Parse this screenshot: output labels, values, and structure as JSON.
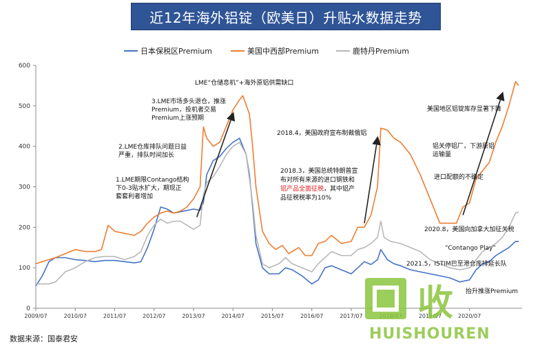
{
  "header": {
    "title": "近12年海外铝锭（欧美日）升贴水数据走势"
  },
  "source": "数据来源：国泰君安",
  "watermark": {
    "line1": "回收",
    "line2": "HUISHOUREN"
  },
  "colors": {
    "japan": "#4472c4",
    "us": "#ed7d31",
    "rotterdam": "#b7b7b7",
    "arrow": "#222222"
  },
  "chart_data": {
    "type": "line",
    "title": "",
    "xlabel": "",
    "ylabel": "",
    "ylim": [
      0,
      600
    ],
    "yticks": [
      0,
      100,
      200,
      300,
      400,
      500,
      600
    ],
    "xlim": [
      "2009-07",
      "2021-11"
    ],
    "xticks": [
      "2009/07",
      "2010/07",
      "2011/07",
      "2012/07",
      "2013/07",
      "2014/07",
      "2015/07",
      "2016/07",
      "2017/07",
      "2018/07",
      "2019/07",
      "2020/07"
    ],
    "legend_position": "top",
    "series": [
      {
        "name": "日本保税区Premium",
        "color_key": "japan",
        "points": [
          [
            "2009-07",
            55
          ],
          [
            "2009-09",
            80
          ],
          [
            "2009-11",
            115
          ],
          [
            "2010-01",
            125
          ],
          [
            "2010-04",
            125
          ],
          [
            "2010-07",
            120
          ],
          [
            "2010-10",
            118
          ],
          [
            "2011-01",
            115
          ],
          [
            "2011-04",
            118
          ],
          [
            "2011-07",
            118
          ],
          [
            "2011-10",
            115
          ],
          [
            "2012-01",
            112
          ],
          [
            "2012-03",
            115
          ],
          [
            "2012-05",
            150
          ],
          [
            "2012-07",
            195
          ],
          [
            "2012-09",
            250
          ],
          [
            "2012-11",
            245
          ],
          [
            "2013-01",
            235
          ],
          [
            "2013-04",
            240
          ],
          [
            "2013-07",
            245
          ],
          [
            "2013-09",
            242
          ],
          [
            "2013-10",
            260
          ],
          [
            "2013-11",
            330
          ],
          [
            "2014-01",
            365
          ],
          [
            "2014-03",
            375
          ],
          [
            "2014-05",
            395
          ],
          [
            "2014-07",
            410
          ],
          [
            "2014-09",
            420
          ],
          [
            "2014-11",
            380
          ],
          [
            "2014-12",
            330
          ],
          [
            "2015-01",
            250
          ],
          [
            "2015-02",
            160
          ],
          [
            "2015-04",
            100
          ],
          [
            "2015-06",
            85
          ],
          [
            "2015-09",
            85
          ],
          [
            "2015-11",
            100
          ],
          [
            "2016-01",
            95
          ],
          [
            "2016-04",
            80
          ],
          [
            "2016-07",
            60
          ],
          [
            "2016-09",
            70
          ],
          [
            "2016-11",
            100
          ],
          [
            "2017-01",
            105
          ],
          [
            "2017-04",
            95
          ],
          [
            "2017-07",
            85
          ],
          [
            "2017-09",
            100
          ],
          [
            "2017-11",
            115
          ],
          [
            "2018-01",
            108
          ],
          [
            "2018-03",
            120
          ],
          [
            "2018-04",
            145
          ],
          [
            "2018-06",
            120
          ],
          [
            "2018-08",
            110
          ],
          [
            "2018-10",
            105
          ],
          [
            "2019-01",
            95
          ],
          [
            "2019-04",
            90
          ],
          [
            "2019-07",
            85
          ],
          [
            "2019-10",
            80
          ],
          [
            "2020-01",
            75
          ],
          [
            "2020-04",
            65
          ],
          [
            "2020-07",
            70
          ],
          [
            "2020-09",
            95
          ],
          [
            "2020-11",
            110
          ],
          [
            "2021-01",
            115
          ],
          [
            "2021-03",
            130
          ],
          [
            "2021-05",
            140
          ],
          [
            "2021-07",
            150
          ],
          [
            "2021-09",
            165
          ],
          [
            "2021-10",
            165
          ]
        ]
      },
      {
        "name": "美国中西部Premium",
        "color_key": "us",
        "points": [
          [
            "2009-07",
            110
          ],
          [
            "2009-09",
            115
          ],
          [
            "2009-11",
            120
          ],
          [
            "2010-01",
            125
          ],
          [
            "2010-04",
            135
          ],
          [
            "2010-07",
            145
          ],
          [
            "2010-10",
            140
          ],
          [
            "2011-01",
            140
          ],
          [
            "2011-03",
            145
          ],
          [
            "2011-05",
            205
          ],
          [
            "2011-07",
            190
          ],
          [
            "2011-10",
            185
          ],
          [
            "2012-01",
            180
          ],
          [
            "2012-03",
            190
          ],
          [
            "2012-05",
            210
          ],
          [
            "2012-07",
            225
          ],
          [
            "2012-09",
            235
          ],
          [
            "2012-11",
            240
          ],
          [
            "2013-01",
            235
          ],
          [
            "2013-03",
            240
          ],
          [
            "2013-05",
            250
          ],
          [
            "2013-07",
            270
          ],
          [
            "2013-09",
            300
          ],
          [
            "2013-10",
            448
          ],
          [
            "2013-11",
            420
          ],
          [
            "2014-01",
            400
          ],
          [
            "2014-03",
            410
          ],
          [
            "2014-05",
            450
          ],
          [
            "2014-07",
            490
          ],
          [
            "2014-09",
            515
          ],
          [
            "2014-10",
            525
          ],
          [
            "2014-12",
            480
          ],
          [
            "2015-01",
            400
          ],
          [
            "2015-02",
            300
          ],
          [
            "2015-04",
            190
          ],
          [
            "2015-06",
            160
          ],
          [
            "2015-08",
            145
          ],
          [
            "2015-10",
            155
          ],
          [
            "2015-12",
            135
          ],
          [
            "2016-03",
            150
          ],
          [
            "2016-05",
            130
          ],
          [
            "2016-07",
            130
          ],
          [
            "2016-09",
            160
          ],
          [
            "2016-11",
            165
          ],
          [
            "2017-01",
            180
          ],
          [
            "2017-04",
            160
          ],
          [
            "2017-07",
            165
          ],
          [
            "2017-09",
            200
          ],
          [
            "2017-11",
            200
          ],
          [
            "2018-01",
            230
          ],
          [
            "2018-03",
            300
          ],
          [
            "2018-04",
            445
          ],
          [
            "2018-06",
            440
          ],
          [
            "2018-08",
            420
          ],
          [
            "2018-10",
            410
          ],
          [
            "2019-01",
            380
          ],
          [
            "2019-04",
            330
          ],
          [
            "2019-07",
            270
          ],
          [
            "2019-10",
            210
          ],
          [
            "2020-01",
            210
          ],
          [
            "2020-03",
            210
          ],
          [
            "2020-05",
            250
          ],
          [
            "2020-07",
            260
          ],
          [
            "2020-09",
            320
          ],
          [
            "2020-11",
            340
          ],
          [
            "2021-01",
            360
          ],
          [
            "2021-03",
            410
          ],
          [
            "2021-05",
            450
          ],
          [
            "2021-07",
            500
          ],
          [
            "2021-09",
            560
          ],
          [
            "2021-10",
            550
          ]
        ]
      },
      {
        "name": "鹿特丹Premium",
        "color_key": "rotterdam",
        "points": [
          [
            "2009-07",
            60
          ],
          [
            "2009-09",
            60
          ],
          [
            "2009-11",
            60
          ],
          [
            "2010-01",
            65
          ],
          [
            "2010-04",
            90
          ],
          [
            "2010-07",
            100
          ],
          [
            "2010-10",
            115
          ],
          [
            "2011-01",
            125
          ],
          [
            "2011-04",
            128
          ],
          [
            "2011-07",
            128
          ],
          [
            "2011-10",
            120
          ],
          [
            "2012-01",
            128
          ],
          [
            "2012-03",
            140
          ],
          [
            "2012-05",
            180
          ],
          [
            "2012-07",
            205
          ],
          [
            "2012-09",
            220
          ],
          [
            "2012-11",
            210
          ],
          [
            "2013-01",
            215
          ],
          [
            "2013-03",
            215
          ],
          [
            "2013-05",
            205
          ],
          [
            "2013-07",
            195
          ],
          [
            "2013-09",
            205
          ],
          [
            "2013-10",
            280
          ],
          [
            "2013-11",
            310
          ],
          [
            "2014-01",
            325
          ],
          [
            "2014-03",
            350
          ],
          [
            "2014-05",
            380
          ],
          [
            "2014-07",
            400
          ],
          [
            "2014-09",
            410
          ],
          [
            "2014-11",
            380
          ],
          [
            "2014-12",
            320
          ],
          [
            "2015-01",
            260
          ],
          [
            "2015-02",
            180
          ],
          [
            "2015-04",
            110
          ],
          [
            "2015-06",
            100
          ],
          [
            "2015-09",
            110
          ],
          [
            "2015-11",
            125
          ],
          [
            "2016-01",
            110
          ],
          [
            "2016-04",
            100
          ],
          [
            "2016-07",
            90
          ],
          [
            "2016-09",
            110
          ],
          [
            "2016-11",
            125
          ],
          [
            "2017-01",
            140
          ],
          [
            "2017-04",
            130
          ],
          [
            "2017-07",
            130
          ],
          [
            "2017-09",
            145
          ],
          [
            "2017-11",
            150
          ],
          [
            "2018-01",
            160
          ],
          [
            "2018-03",
            175
          ],
          [
            "2018-04",
            215
          ],
          [
            "2018-05",
            175
          ],
          [
            "2018-07",
            165
          ],
          [
            "2018-10",
            160
          ],
          [
            "2019-01",
            150
          ],
          [
            "2019-04",
            140
          ],
          [
            "2019-07",
            120
          ],
          [
            "2019-10",
            110
          ],
          [
            "2020-01",
            100
          ],
          [
            "2020-04",
            95
          ],
          [
            "2020-07",
            100
          ],
          [
            "2020-09",
            120
          ],
          [
            "2020-11",
            140
          ],
          [
            "2021-01",
            150
          ],
          [
            "2021-03",
            160
          ],
          [
            "2021-05",
            175
          ],
          [
            "2021-07",
            200
          ],
          [
            "2021-09",
            235
          ],
          [
            "2021-10",
            238
          ]
        ]
      }
    ],
    "annotations": [
      {
        "id": "ann-lme-storage",
        "text": "LME“仓储息机”+海外原铝供需缺口"
      },
      {
        "id": "ann-3",
        "lines": [
          "3.LME市场多头退仓，推涨",
          "Premium，投机者交易",
          "Premium上涨预期"
        ]
      },
      {
        "id": "ann-2",
        "lines": [
          "2.LME仓库排队问题日益",
          "严重，排队时间加长"
        ]
      },
      {
        "id": "ann-1",
        "lines": [
          "1.LME期限Contango结构",
          "下0-3贴水扩大，期现正",
          "套套利者增加"
        ]
      },
      {
        "id": "ann-2018-4",
        "text": "2018.4，美国政府宣布制裁俄铝"
      },
      {
        "id": "ann-2018-3",
        "lines": [
          "2018.3，美国总统特朗普宣",
          "布对所有来源的进口钢铁和"
        ],
        "highlight": "铝产品全面征税",
        "line3_tail": "，其中铝产",
        "line4": "品征税税率为10%"
      },
      {
        "id": "ann-us-inv",
        "text": "美国地区铝锭库存显著下降"
      },
      {
        "id": "ann-closure",
        "lines": [
          "铝关停铝厂，下游原铝",
          "运输量"
        ]
      },
      {
        "id": "ann-uncertain",
        "text": "进口配额的不确定"
      },
      {
        "id": "ann-2020-8",
        "text": "2020.8，美国向加拿大加征关税"
      },
      {
        "id": "ann-contango",
        "text": "“Contango Play”"
      },
      {
        "id": "ann-2021-5",
        "text": "2021.5，ISTIM巴至港仓库排延长队"
      },
      {
        "id": "ann-premium-up",
        "text": "抬升推涨Premium"
      }
    ]
  }
}
